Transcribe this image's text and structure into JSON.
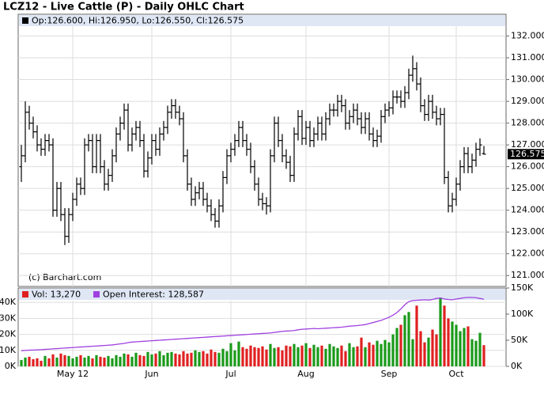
{
  "chart_data": [
    {
      "type": "ohlc",
      "title": "LCZ12 - Live Cattle (P) - Daily OHLC Chart",
      "legend": "Op:126.600, Hi:126.950, Lo:126.550, Cl:126.575",
      "watermark": "(c) Barchart.com",
      "color": "#000000",
      "open": [
        126,
        126.5,
        128.5,
        128,
        127.6,
        127,
        126.8,
        127.2,
        127,
        124,
        125,
        123.8,
        122.8,
        123.8,
        124.5,
        125.2,
        125,
        127,
        127.2,
        126,
        127.2,
        126,
        125.2,
        125.6,
        126.5,
        127.5,
        128,
        128.6,
        127,
        127.5,
        127.8,
        127.2,
        125.8,
        126.4,
        127.2,
        126.8,
        127.5,
        127.8,
        128.5,
        128.8,
        128.5,
        128.2,
        126.5,
        125.2,
        124.5,
        124.8,
        125,
        124.5,
        124.2,
        123.8,
        123.5,
        124.2,
        125.5,
        126.5,
        126.8,
        127.2,
        127.8,
        127.2,
        126.8,
        126,
        125.2,
        124.5,
        124.3,
        124.2,
        126.5,
        128,
        127.2,
        126.5,
        126.2,
        125.6,
        127.5,
        128.3,
        127.3,
        127.8,
        127.2,
        127.5,
        128,
        127.5,
        128.2,
        128.6,
        128.6,
        129,
        128.8,
        128,
        128.3,
        128.6,
        128.2,
        127.8,
        128.2,
        127.5,
        127.2,
        127.4,
        128.3,
        128.6,
        128.7,
        129.2,
        129.2,
        129,
        129.4,
        130.2,
        130.5,
        129.8,
        128.8,
        128.4,
        129,
        128.5,
        128.2,
        128.4,
        125.5,
        124.2,
        124.5,
        125.2,
        126,
        126.6,
        126,
        126.3,
        126.8,
        126.6
      ],
      "high": [
        127,
        129,
        128.8,
        128.3,
        127.9,
        127.3,
        127.5,
        127.5,
        127.3,
        125.3,
        125.3,
        124.1,
        124.1,
        124.8,
        125.5,
        125.5,
        127.3,
        127.5,
        127.5,
        127.5,
        127.5,
        126.3,
        125.9,
        126.8,
        127.8,
        128.3,
        128.9,
        128.9,
        127.8,
        128.1,
        128.1,
        127.5,
        126.7,
        127.5,
        127.5,
        127.8,
        128.1,
        128.8,
        129.1,
        129.1,
        128.8,
        128.5,
        126.8,
        125.5,
        125.1,
        125.3,
        125.3,
        124.8,
        124.5,
        124.1,
        124.5,
        125.8,
        126.8,
        127.1,
        127.5,
        128.1,
        128.1,
        127.5,
        127.1,
        126.3,
        125.5,
        124.8,
        124.6,
        126.8,
        128.3,
        128.3,
        127.5,
        126.8,
        126.5,
        127.8,
        128.6,
        128.6,
        128.1,
        128.1,
        127.8,
        128.3,
        128.3,
        128.5,
        128.9,
        128.9,
        129.3,
        129.3,
        129.1,
        128.6,
        128.9,
        128.9,
        128.5,
        128.5,
        128.5,
        127.8,
        127.7,
        128.6,
        128.9,
        129,
        129.5,
        129.5,
        129.5,
        129.7,
        130.5,
        131.1,
        130.8,
        130.1,
        129.1,
        129.3,
        129.3,
        128.8,
        128.7,
        128.7,
        125.8,
        124.8,
        125.5,
        126.3,
        126.9,
        126.9,
        126.6,
        127.1,
        127.3,
        126.95
      ],
      "low": [
        125.3,
        126.2,
        127.7,
        127.3,
        126.7,
        126.5,
        126.5,
        126.7,
        123.7,
        123.7,
        123.5,
        122.4,
        122.5,
        123.5,
        124.2,
        124.7,
        124.7,
        126.7,
        125.7,
        125.7,
        125.7,
        124.9,
        124.9,
        125.3,
        126.2,
        127.2,
        127.7,
        126.7,
        126.7,
        127.2,
        126.9,
        125.5,
        125.5,
        126.1,
        126.5,
        126.5,
        127.2,
        127.5,
        128.2,
        128.2,
        127.9,
        126.2,
        124.9,
        124.2,
        124.2,
        124.5,
        124.2,
        123.9,
        123.5,
        123.2,
        123.2,
        123.9,
        125.2,
        126.2,
        126.5,
        126.9,
        126.9,
        126.5,
        125.7,
        124.9,
        124.2,
        124,
        123.8,
        123.9,
        126.2,
        126.9,
        126.2,
        125.9,
        125.3,
        125.3,
        127.2,
        127,
        127,
        126.9,
        126.9,
        127.2,
        127.2,
        127.2,
        127.9,
        128.3,
        128.3,
        128.5,
        127.7,
        127.7,
        128,
        127.9,
        127.5,
        127.5,
        127.2,
        126.9,
        126.9,
        127.1,
        128,
        128.3,
        128.4,
        128.9,
        128.7,
        128.7,
        129.1,
        129.9,
        129.5,
        128.5,
        128.1,
        128.1,
        128.2,
        127.9,
        127.9,
        125.2,
        123.9,
        123.9,
        124.2,
        124.9,
        125.7,
        125.7,
        125.7,
        126,
        126.5,
        126.55
      ],
      "close": [
        126.5,
        128.5,
        128,
        127.6,
        127,
        126.8,
        127.2,
        127,
        124,
        125,
        123.8,
        122.8,
        123.8,
        124.5,
        125.2,
        125,
        127,
        127.2,
        126,
        127.2,
        126,
        125.2,
        125.6,
        126.5,
        127.5,
        128,
        128.6,
        127,
        127.5,
        127.8,
        127.2,
        125.8,
        126.4,
        127.2,
        126.8,
        127.5,
        127.8,
        128.5,
        128.8,
        128.5,
        128.2,
        126.5,
        125.2,
        124.5,
        124.8,
        125,
        124.5,
        124.2,
        123.8,
        123.5,
        124.2,
        125.5,
        126.5,
        126.8,
        127.2,
        127.8,
        127.2,
        126.8,
        126,
        125.2,
        124.5,
        124.3,
        124.2,
        126.5,
        128,
        127.2,
        126.5,
        126.2,
        125.6,
        127.5,
        128.3,
        127.3,
        127.8,
        127.2,
        127.5,
        128,
        127.5,
        128.2,
        128.6,
        128.6,
        129,
        128.8,
        128,
        128.3,
        128.6,
        128.2,
        127.8,
        128.2,
        127.5,
        127.2,
        127.4,
        128.3,
        128.6,
        128.7,
        129.2,
        129.2,
        129,
        129.4,
        130.2,
        130.5,
        129.8,
        128.8,
        128.4,
        129,
        128.5,
        128.2,
        128.4,
        125.5,
        124.2,
        124.5,
        125.2,
        126,
        126.6,
        126,
        126.3,
        126.8,
        127,
        126.575
      ],
      "ylim": [
        120.5,
        133
      ],
      "yticks": [
        {
          "value": 121,
          "label": "121.000"
        },
        {
          "value": 122,
          "label": "122.000"
        },
        {
          "value": 123,
          "label": "123.000"
        },
        {
          "value": 124,
          "label": "124.000"
        },
        {
          "value": 125,
          "label": "125.000"
        },
        {
          "value": 126,
          "label": "126.000"
        },
        {
          "value": 127,
          "label": "127.000"
        },
        {
          "value": 128,
          "label": "128.000"
        },
        {
          "value": 129,
          "label": "129.000"
        },
        {
          "value": 130,
          "label": "130.000"
        },
        {
          "value": 131,
          "label": "131.000"
        },
        {
          "value": 132,
          "label": "132.000"
        }
      ],
      "grid": true
    },
    {
      "type": "bar",
      "categories": [
        null,
        null,
        null,
        null,
        null,
        null,
        null,
        null,
        null,
        null,
        null,
        null,
        null,
        "May 12",
        null,
        null,
        null,
        null,
        null,
        null,
        null,
        null,
        null,
        null,
        null,
        null,
        null,
        null,
        null,
        null,
        null,
        null,
        null,
        "Jun",
        null,
        null,
        null,
        null,
        null,
        null,
        null,
        null,
        null,
        null,
        null,
        null,
        null,
        null,
        null,
        null,
        null,
        null,
        null,
        "Jul",
        null,
        null,
        null,
        null,
        null,
        null,
        null,
        null,
        null,
        null,
        null,
        null,
        null,
        null,
        null,
        null,
        null,
        null,
        "Aug",
        null,
        null,
        null,
        null,
        null,
        null,
        null,
        null,
        null,
        null,
        null,
        null,
        null,
        null,
        null,
        null,
        null,
        null,
        null,
        null,
        "Sep",
        null,
        null,
        null,
        null,
        null,
        null,
        null,
        null,
        null,
        null,
        null,
        null,
        null,
        null,
        null,
        null,
        "Oct",
        null,
        null,
        null,
        null,
        null,
        null,
        null
      ],
      "series": [
        {
          "name": "Vol: 13,270",
          "color": "#e02020",
          "up_color": "#1a9a1a",
          "down_color": "#e02020",
          "values": [
            4000,
            5500,
            6000,
            4500,
            5000,
            3500,
            6500,
            5000,
            7500,
            5500,
            8000,
            7000,
            6500,
            5000,
            6000,
            7000,
            5500,
            6500,
            5000,
            7000,
            6000,
            5500,
            6500,
            5000,
            7000,
            6000,
            8000,
            7500,
            6000,
            8500,
            7000,
            6500,
            9000,
            7500,
            8000,
            9500,
            7000,
            8500,
            9000,
            8000,
            7500,
            9500,
            8000,
            8500,
            10000,
            9000,
            9500,
            8000,
            10500,
            9000,
            8500,
            11000,
            9500,
            14500,
            10000,
            15500,
            12000,
            11000,
            13000,
            12000,
            11500,
            12500,
            10500,
            14000,
            11500,
            12000,
            10000,
            13000,
            12500,
            14000,
            12000,
            13000,
            14500,
            11500,
            13500,
            12000,
            13000,
            11000,
            14000,
            12500,
            11500,
            13000,
            9500,
            14500,
            12000,
            12500,
            18000,
            12000,
            15000,
            13500,
            16000,
            14000,
            16500,
            15000,
            20000,
            24000,
            26000,
            32000,
            34000,
            17000,
            38000,
            22000,
            15000,
            18000,
            23000,
            20000,
            43000,
            38000,
            30000,
            28000,
            26000,
            22000,
            24000,
            25000,
            17000,
            16000,
            21000,
            13270
          ]
        },
        {
          "name": "Open Interest: 128,587",
          "color": "#a040e0",
          "axis": "y2",
          "values": [
            30000,
            30500,
            31000,
            31200,
            31500,
            32000,
            32500,
            33000,
            33500,
            34000,
            34500,
            35000,
            35500,
            36000,
            36500,
            37000,
            37500,
            38000,
            38500,
            39000,
            39500,
            40000,
            40500,
            41000,
            42000,
            43000,
            44000,
            45500,
            46500,
            47000,
            47500,
            48000,
            48500,
            49000,
            49500,
            50000,
            50500,
            51000,
            51500,
            52000,
            52500,
            53000,
            53500,
            54000,
            54500,
            55000,
            55500,
            56000,
            56500,
            57000,
            57500,
            58000,
            58500,
            59000,
            59500,
            60000,
            60500,
            61000,
            61500,
            62000,
            62500,
            63000,
            63500,
            64000,
            65000,
            66000,
            67000,
            67500,
            68000,
            68500,
            70000,
            71000,
            71500,
            72000,
            72500,
            72000,
            72500,
            73000,
            73500,
            74000,
            74500,
            75000,
            76000,
            77000,
            77500,
            78000,
            79000,
            80000,
            82000,
            84000,
            86000,
            88000,
            91000,
            94000,
            98000,
            103000,
            110000,
            118000,
            124000,
            126000,
            126500,
            127000,
            127500,
            127000,
            128000,
            130000,
            131000,
            129000,
            128000,
            127500,
            129000,
            130000,
            131500,
            132000,
            132000,
            131500,
            130000,
            128587
          ]
        }
      ],
      "ylim": [
        0,
        49000
      ],
      "yticks": [
        {
          "value": 0,
          "label": "0K"
        },
        {
          "value": 10000,
          "label": "10K"
        },
        {
          "value": 20000,
          "label": "20K"
        },
        {
          "value": 30000,
          "label": "30K"
        },
        {
          "value": 40000,
          "label": "40K"
        }
      ],
      "y2lim": [
        0,
        150000
      ],
      "y2ticks": [
        {
          "value": 0,
          "label": "0K"
        },
        {
          "value": 50000,
          "label": "50K"
        },
        {
          "value": 100000,
          "label": "100K"
        },
        {
          "value": 150000,
          "label": "150K"
        }
      ]
    }
  ]
}
